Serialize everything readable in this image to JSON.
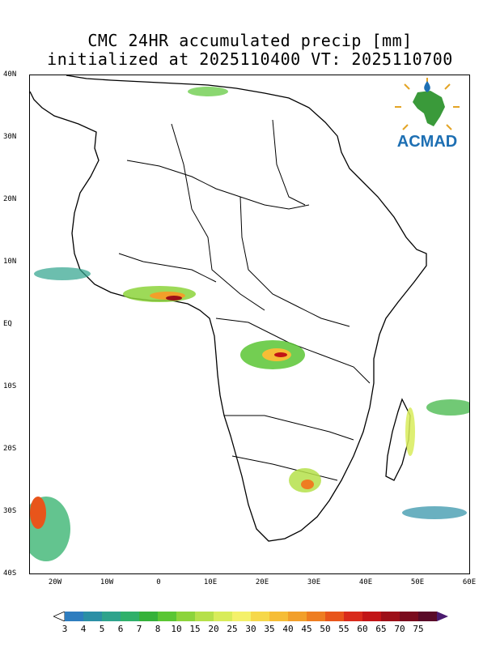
{
  "title": {
    "line1": "CMC 24HR accumulated precip [mm]",
    "line2": "initialized at 2025110400 VT: 2025110700"
  },
  "logo": {
    "text": "ACMAD",
    "icon": "africa-map-logo-icon"
  },
  "axes": {
    "lat_labels": [
      "40N",
      "30N",
      "20N",
      "10N",
      "EQ",
      "10S",
      "20S",
      "30S",
      "40S"
    ],
    "lon_labels": [
      "20W",
      "10W",
      "0",
      "10E",
      "20E",
      "30E",
      "40E",
      "50E",
      "60E"
    ]
  },
  "colorbar": {
    "labels": [
      "3",
      "4",
      "5",
      "6",
      "7",
      "8",
      "10",
      "15",
      "20",
      "25",
      "30",
      "35",
      "40",
      "45",
      "50",
      "55",
      "60",
      "65",
      "70",
      "75"
    ],
    "colors": [
      "#2e7dbf",
      "#2b8fa5",
      "#2ea38c",
      "#2fb06a",
      "#35b23a",
      "#5ac634",
      "#8cd43b",
      "#b5e04a",
      "#d8ec5a",
      "#f4f16a",
      "#f6d84a",
      "#f6bd36",
      "#f29f2a",
      "#ee7d21",
      "#e8551b",
      "#d92a1b",
      "#c21416",
      "#9d0f18",
      "#7a0c1e",
      "#5a0a28"
    ],
    "overflow_color": "#4a1a6e"
  }
}
